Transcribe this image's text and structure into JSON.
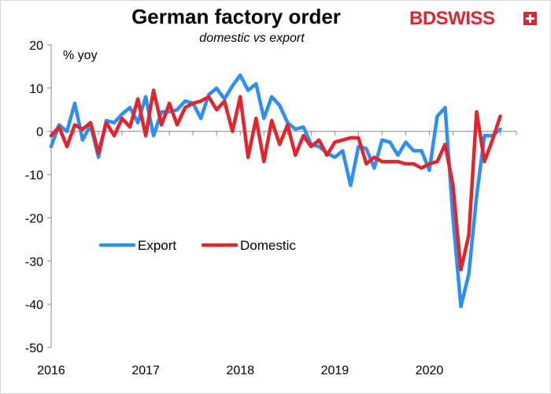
{
  "chart_data": {
    "type": "line",
    "title": "German factory order",
    "subtitle": "domestic vs export",
    "ylabel": "% yoy",
    "xlabel": "",
    "ylim": [
      -50,
      20
    ],
    "yticks": [
      20,
      10,
      0,
      -10,
      -20,
      -30,
      -40,
      -50
    ],
    "xlim": [
      2016.0,
      2020.92
    ],
    "xticks": [
      "2016",
      "2017",
      "2018",
      "2019",
      "2020"
    ],
    "legend_position": "middle-left",
    "grid": false,
    "series": [
      {
        "name": "Export",
        "color": "#2e8ff0",
        "x": [
          2016.0,
          2016.083,
          2016.167,
          2016.25,
          2016.333,
          2016.417,
          2016.5,
          2016.583,
          2016.667,
          2016.75,
          2016.833,
          2016.917,
          2017.0,
          2017.083,
          2017.167,
          2017.25,
          2017.333,
          2017.417,
          2017.5,
          2017.583,
          2017.667,
          2017.75,
          2017.833,
          2017.917,
          2018.0,
          2018.083,
          2018.167,
          2018.25,
          2018.333,
          2018.417,
          2018.5,
          2018.583,
          2018.667,
          2018.75,
          2018.833,
          2018.917,
          2019.0,
          2019.083,
          2019.167,
          2019.25,
          2019.333,
          2019.417,
          2019.5,
          2019.583,
          2019.667,
          2019.75,
          2019.833,
          2019.917,
          2020.0,
          2020.083,
          2020.167,
          2020.25,
          2020.333,
          2020.417,
          2020.5,
          2020.583,
          2020.667,
          2020.75
        ],
        "y": [
          -3.5,
          1.5,
          0,
          6.5,
          -2,
          1.5,
          -6,
          2.5,
          2,
          4,
          5.5,
          2,
          8,
          -1,
          4.5,
          4.5,
          5,
          7,
          6.5,
          3,
          8.5,
          10,
          7.5,
          10.5,
          13,
          9.5,
          11,
          3,
          8,
          6,
          2,
          0.5,
          1,
          -3,
          -3.5,
          -5,
          -6,
          -4.5,
          -12.5,
          -3.5,
          -4,
          -8.5,
          -2,
          -2.5,
          -5.5,
          -2.5,
          -4.5,
          -4.5,
          -9,
          3.5,
          5.5,
          -20,
          -40.5,
          -33,
          -15,
          -1,
          -1,
          0.5
        ]
      },
      {
        "name": "Domestic",
        "color": "#e0262c",
        "x": [
          2016.0,
          2016.083,
          2016.167,
          2016.25,
          2016.333,
          2016.417,
          2016.5,
          2016.583,
          2016.667,
          2016.75,
          2016.833,
          2016.917,
          2017.0,
          2017.083,
          2017.167,
          2017.25,
          2017.333,
          2017.417,
          2017.5,
          2017.583,
          2017.667,
          2017.75,
          2017.833,
          2017.917,
          2018.0,
          2018.083,
          2018.167,
          2018.25,
          2018.333,
          2018.417,
          2018.5,
          2018.583,
          2018.667,
          2018.75,
          2018.833,
          2018.917,
          2019.0,
          2019.083,
          2019.167,
          2019.25,
          2019.333,
          2019.417,
          2019.5,
          2019.583,
          2019.667,
          2019.75,
          2019.833,
          2019.917,
          2020.0,
          2020.083,
          2020.167,
          2020.25,
          2020.333,
          2020.417,
          2020.5,
          2020.583,
          2020.667,
          2020.75
        ],
        "y": [
          -1,
          1,
          -3.5,
          1.5,
          0.5,
          2,
          -5,
          2,
          -1,
          3,
          1,
          7.5,
          -1,
          9.5,
          1.5,
          6.5,
          1.5,
          5.5,
          6.5,
          7,
          8,
          5,
          7,
          0,
          8,
          -6,
          3,
          -7,
          2.5,
          -3,
          1.5,
          -5.5,
          -1,
          -3.5,
          -2,
          -5.5,
          -2.5,
          -2,
          -1.5,
          -1.5,
          -7.5,
          -6,
          -7,
          -7,
          -7,
          -7.5,
          -7.5,
          -8.5,
          -7.5,
          -7,
          -3,
          -12.5,
          -32,
          -24,
          4.5,
          -7,
          -2,
          3.5
        ]
      }
    ]
  },
  "logo": {
    "text": "BDSWISS"
  }
}
